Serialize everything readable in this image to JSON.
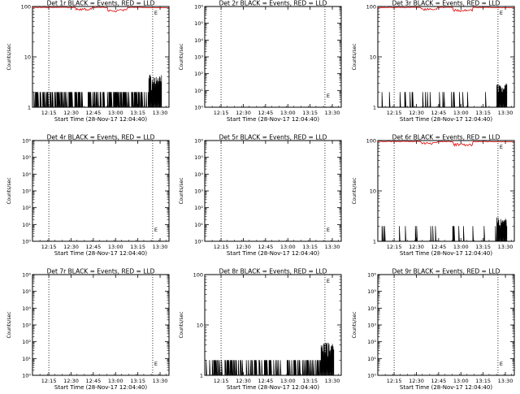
{
  "chart_data": [
    {
      "type": "line",
      "title": "Det 1r BLACK = Events, RED = LLD",
      "xlabel": "Start Time (28-Nov-17 12:04:40)",
      "ylabel": "Counts/sec",
      "yscale": "log",
      "ylim": [
        1,
        100
      ],
      "ytick_labels": [
        "1",
        "10",
        "100"
      ],
      "events": "bursty",
      "red_llD": true,
      "mark": "E"
    },
    {
      "type": "line",
      "title": "Det 2r BLACK = Events, RED = LLD",
      "xlabel": "Start Time (28-Nov-17 12:04:40)",
      "ylabel": "Counts/sec",
      "yscale": "log",
      "ylim": [
        1,
        1000000
      ],
      "ytick_labels": [
        "10⁰",
        "10¹",
        "10²",
        "10³",
        "10⁴",
        "10⁵",
        "10⁶"
      ],
      "events": "none",
      "red_llD": false,
      "mark": "E"
    },
    {
      "type": "line",
      "title": "Det 3r BLACK = Events, RED = LLD",
      "xlabel": "Start Time (28-Nov-17 12:04:40)",
      "ylabel": "Counts/sec",
      "yscale": "log",
      "ylim": [
        1,
        100
      ],
      "ytick_labels": [
        "1",
        "10",
        "100"
      ],
      "events": "sparse",
      "red_llD": true,
      "mark": "E"
    },
    {
      "type": "line",
      "title": "Det 4r BLACK = Events, RED = LLD",
      "xlabel": "Start Time (28-Nov-17 12:04:40)",
      "ylabel": "Counts/sec",
      "yscale": "log",
      "ylim": [
        1,
        1000000
      ],
      "ytick_labels": [
        "10⁰",
        "10¹",
        "10²",
        "10³",
        "10⁴",
        "10⁵",
        "10⁶"
      ],
      "events": "none",
      "red_llD": false,
      "mark": "E"
    },
    {
      "type": "line",
      "title": "Det 5r BLACK = Events, RED = LLD",
      "xlabel": "Start Time (28-Nov-17 12:04:40)",
      "ylabel": "Counts/sec",
      "yscale": "log",
      "ylim": [
        1,
        1000000
      ],
      "ytick_labels": [
        "10⁰",
        "10¹",
        "10²",
        "10³",
        "10⁴",
        "10⁵",
        "10⁶"
      ],
      "events": "none",
      "red_llD": false,
      "mark": "E"
    },
    {
      "type": "line",
      "title": "Det 6r BLACK = Events, RED = LLD",
      "xlabel": "Start Time (28-Nov-17 12:04:40)",
      "ylabel": "Counts/sec",
      "yscale": "log",
      "ylim": [
        1,
        100
      ],
      "ytick_labels": [
        "1",
        "10",
        "100"
      ],
      "events": "sparse",
      "red_llD": true,
      "mark": "E"
    },
    {
      "type": "line",
      "title": "Det 7r BLACK = Events, RED = LLD",
      "xlabel": "Start Time (28-Nov-17 12:04:40)",
      "ylabel": "Counts/sec",
      "yscale": "log",
      "ylim": [
        1,
        1000000
      ],
      "ytick_labels": [
        "10⁰",
        "10¹",
        "10²",
        "10³",
        "10⁴",
        "10⁵",
        "10⁶"
      ],
      "events": "none",
      "red_llD": false,
      "mark": "E"
    },
    {
      "type": "line",
      "title": "Det 8r BLACK = Events, RED = LLD",
      "xlabel": "Start Time (28-Nov-17 12:04:40)",
      "ylabel": "Counts/sec",
      "yscale": "log",
      "ylim": [
        1,
        100
      ],
      "ytick_labels": [
        "1",
        "10",
        "100"
      ],
      "events": "bursty",
      "red_llD": false,
      "mark": "E"
    },
    {
      "type": "line",
      "title": "Det 9r BLACK = Events, RED = LLD",
      "xlabel": "Start Time (28-Nov-17 12:04:40)",
      "ylabel": "Counts/sec",
      "yscale": "log",
      "ylim": [
        1,
        1000000
      ],
      "ytick_labels": [
        "10⁰",
        "10¹",
        "10²",
        "10³",
        "10⁴",
        "10⁵",
        "10⁶"
      ],
      "events": "none",
      "red_llD": false,
      "mark": "E"
    }
  ],
  "x_tick_labels": [
    "12:15",
    "12:30",
    "12:45",
    "13:00",
    "13:15",
    "13:30"
  ],
  "vertical_dotted_markers": [
    "12:15",
    "13:25"
  ]
}
